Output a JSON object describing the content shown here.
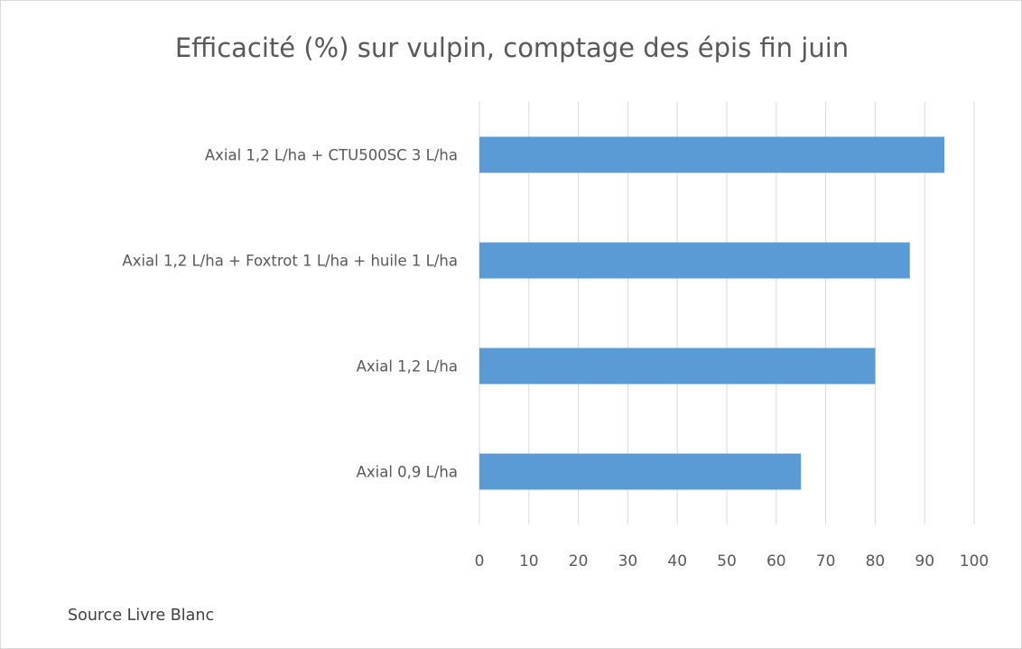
{
  "chart_data": {
    "type": "bar",
    "orientation": "horizontal",
    "title": "Efficacité (%) sur vulpin, comptage des épis fin juin",
    "categories": [
      "Axial 1,2 L/ha + CTU500SC 3 L/ha",
      "Axial 1,2 L/ha + Foxtrot 1 L/ha + huile 1 L/ha",
      "Axial 1,2 L/ha",
      "Axial 0,9 L/ha"
    ],
    "values": [
      94,
      87,
      80,
      65
    ],
    "xlim": [
      0,
      100
    ],
    "xticks": [
      0,
      10,
      20,
      30,
      40,
      50,
      60,
      70,
      80,
      90,
      100
    ],
    "grid": "vertical",
    "legend": "none",
    "bar_color": "#5b9bd5",
    "grid_color": "#d9d9d9",
    "text_color": "#595959"
  },
  "footnote": "Source Livre Blanc"
}
